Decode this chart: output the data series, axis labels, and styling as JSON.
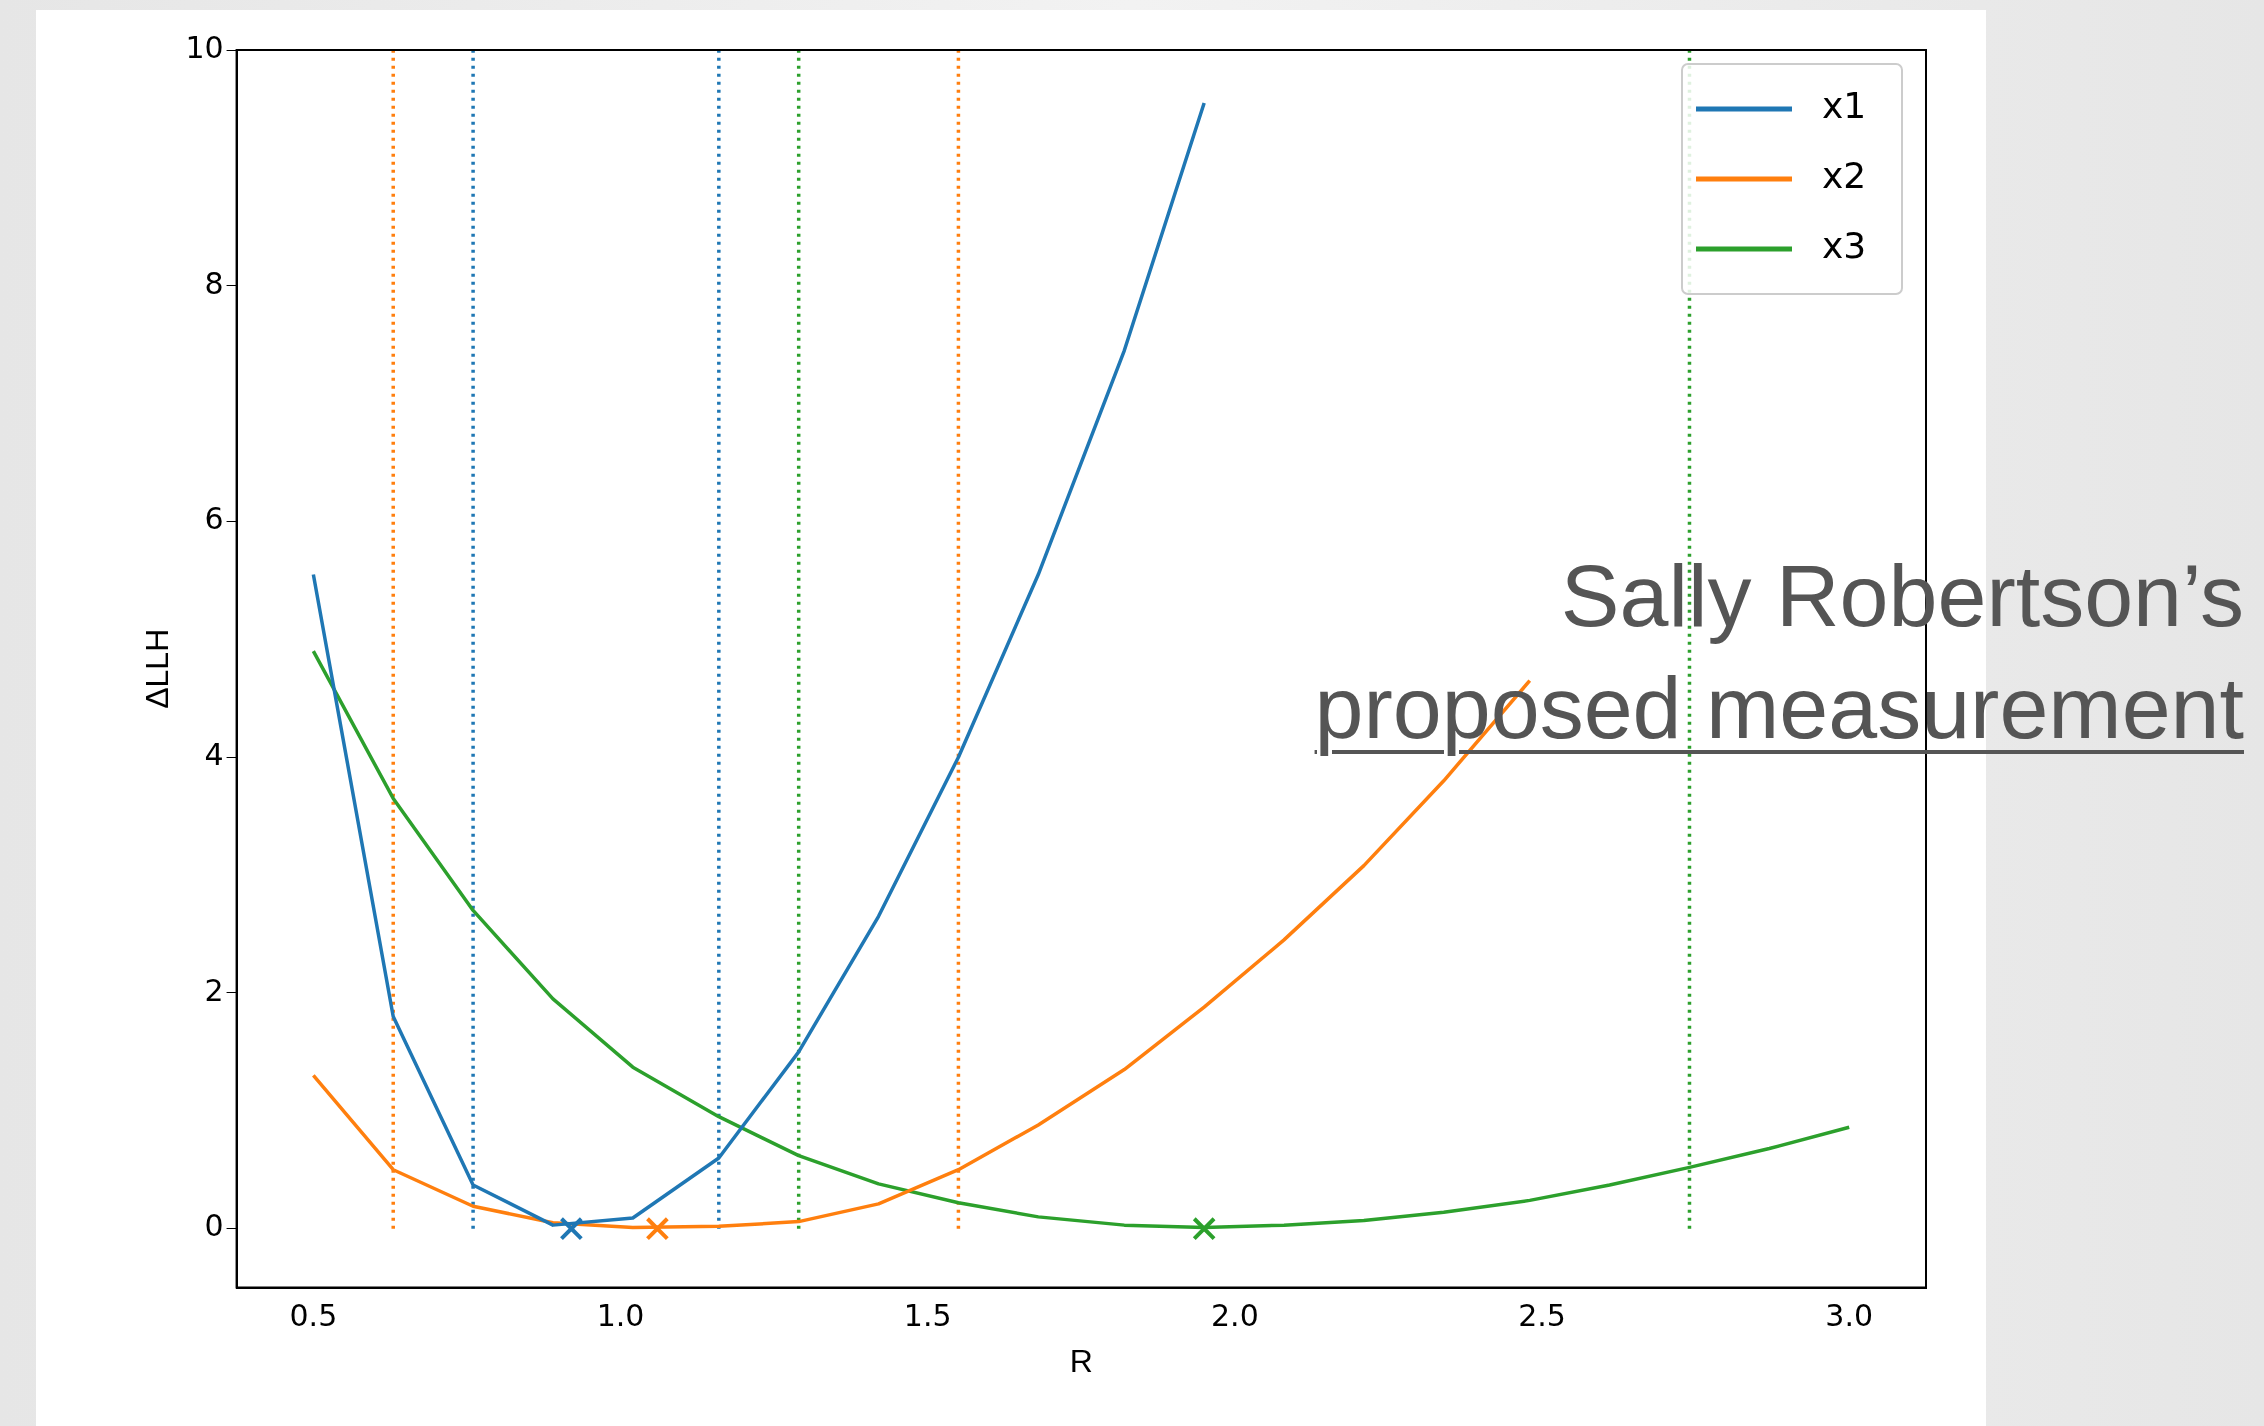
{
  "chart_data": {
    "type": "line",
    "xlabel": "R",
    "ylabel": "ΔLLH",
    "xlim": [
      0.375,
      3.125
    ],
    "ylim": [
      -0.5,
      10
    ],
    "xticks": [
      0.5,
      {
        "value": 1,
        "label": "1.0"
      },
      1.5,
      {
        "value": 2,
        "label": "2.0"
      },
      2.5,
      {
        "value": 3,
        "label": "3.0"
      }
    ],
    "yticks": [
      0,
      2,
      4,
      6,
      8,
      10
    ],
    "legend": "top right",
    "grid": false,
    "series": [
      {
        "name": "x1",
        "color": "#1f77b4",
        "marker": "none",
        "x": [
          0.5,
          0.63,
          0.76,
          0.89,
          1.02,
          1.16,
          1.29,
          1.42,
          1.55,
          1.68,
          1.82,
          1.95
        ],
        "values": [
          5.55,
          1.8,
          0.37,
          0.03,
          0.09,
          0.6,
          1.5,
          2.65,
          4.0,
          5.55,
          7.45,
          9.55
        ]
      },
      {
        "name": "x2",
        "color": "#ff7f0e",
        "marker": "none",
        "x": [
          0.5,
          0.63,
          0.76,
          0.89,
          1.02,
          1.16,
          1.29,
          1.42,
          1.55,
          1.68,
          1.82,
          1.95,
          2.08,
          2.21,
          2.34,
          2.48
        ],
        "values": [
          1.3,
          0.5,
          0.19,
          0.05,
          0.01,
          0.02,
          0.06,
          0.21,
          0.5,
          0.88,
          1.35,
          1.88,
          2.45,
          3.08,
          3.8,
          4.65
        ]
      },
      {
        "name": "x3",
        "color": "#2ca02c",
        "marker": "none",
        "x": [
          0.5,
          0.63,
          0.76,
          0.89,
          1.02,
          1.16,
          1.29,
          1.42,
          1.55,
          1.68,
          1.82,
          1.95,
          2.08,
          2.21,
          2.34,
          2.48,
          2.61,
          2.74,
          2.87,
          3.0
        ],
        "values": [
          4.9,
          3.65,
          2.7,
          1.95,
          1.37,
          0.95,
          0.62,
          0.38,
          0.22,
          0.1,
          0.03,
          0.01,
          0.03,
          0.07,
          0.14,
          0.24,
          0.37,
          0.52,
          0.68,
          0.86
        ]
      },
      {
        "type": "scatter",
        "color": "#1f77b4",
        "marker": "cross",
        "x": [
          0.92
        ],
        "values": [
          0
        ]
      },
      {
        "type": "scatter",
        "color": "#ff7f0e",
        "marker": "cross",
        "x": [
          1.06
        ],
        "values": [
          0
        ]
      },
      {
        "type": "scatter",
        "color": "#2ca02c",
        "marker": "cross",
        "x": [
          1.95
        ],
        "values": [
          0
        ]
      }
    ],
    "ref_lines": [
      {
        "axis": "x",
        "value": 0.63,
        "color": "#ff7f0e",
        "line_style": "dotted"
      },
      {
        "axis": "x",
        "value": 1.55,
        "color": "#ff7f0e",
        "line_style": "dotted"
      },
      {
        "axis": "x",
        "value": 0.76,
        "color": "#1f77b4",
        "line_style": "dotted"
      },
      {
        "axis": "x",
        "value": 1.16,
        "color": "#1f77b4",
        "line_style": "dotted"
      },
      {
        "axis": "x",
        "value": 1.29,
        "color": "#2ca02c",
        "line_style": "dotted"
      },
      {
        "axis": "x",
        "value": 2.74,
        "color": "#2ca02c",
        "line_style": "dotted"
      }
    ],
    "annotations": [
      "Sally Robertson’s",
      "proposed measurement"
    ]
  }
}
